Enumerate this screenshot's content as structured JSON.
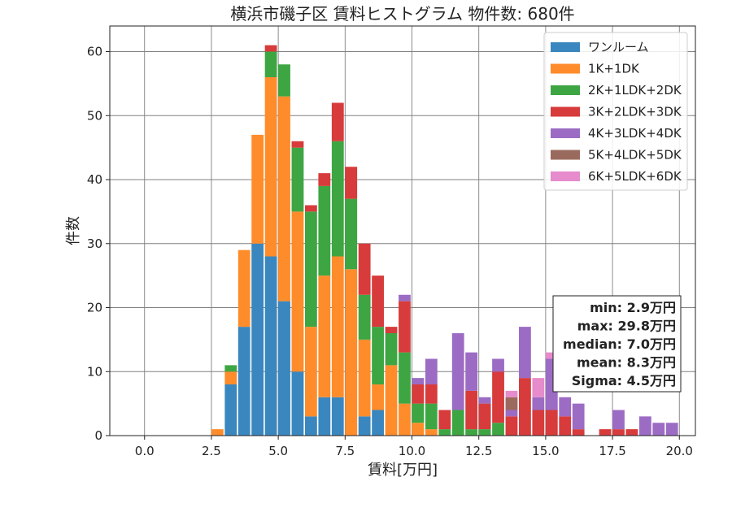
{
  "chart_data": {
    "type": "bar",
    "stacked": true,
    "title": "横浜市磯子区 賃料ヒストグラム 物件数: 680件",
    "xlabel": "賃料[万円]",
    "ylabel": "件数",
    "xlim": [
      -1.3,
      20.6
    ],
    "ylim": [
      0,
      64
    ],
    "xticks": [
      0.0,
      2.5,
      5.0,
      7.5,
      10.0,
      12.5,
      15.0,
      17.5,
      20.0
    ],
    "xtick_labels": [
      "0.0",
      "2.5",
      "5.0",
      "7.5",
      "10.0",
      "12.5",
      "15.0",
      "17.5",
      "20.0"
    ],
    "yticks": [
      0,
      10,
      20,
      30,
      40,
      50,
      60
    ],
    "ytick_labels": [
      "0",
      "10",
      "20",
      "30",
      "40",
      "50",
      "60"
    ],
    "grid": true,
    "legend_position": "top-right",
    "bin_width": 0.5,
    "x": [
      2.5,
      3.0,
      3.5,
      4.0,
      4.5,
      5.0,
      5.5,
      6.0,
      6.5,
      7.0,
      7.5,
      8.0,
      8.5,
      9.0,
      9.5,
      10.0,
      10.5,
      11.0,
      11.5,
      12.0,
      12.5,
      13.0,
      13.5,
      14.0,
      14.5,
      15.0,
      15.5,
      16.0,
      16.5,
      17.0,
      17.5,
      18.0,
      18.5,
      19.0,
      19.5
    ],
    "series": [
      {
        "name": "ワンルーム",
        "color": "#3a87bf",
        "values": [
          0,
          8,
          17,
          30,
          28,
          21,
          10,
          3,
          6,
          6,
          0,
          3,
          4,
          0,
          0,
          0,
          0,
          0,
          0,
          0,
          0,
          0,
          0,
          0,
          0,
          0,
          0,
          0,
          0,
          0,
          0,
          0,
          0,
          0,
          0
        ]
      },
      {
        "name": "1K+1DK",
        "color": "#ff8c2b",
        "values": [
          1,
          2,
          12,
          17,
          28,
          32,
          25,
          14,
          19,
          22,
          26,
          12,
          4,
          11,
          5,
          2,
          1,
          0,
          0,
          0,
          0,
          0,
          0,
          0,
          0,
          0,
          0,
          0,
          0,
          0,
          0,
          0,
          0,
          0,
          0
        ]
      },
      {
        "name": "2K+1LDK+2DK",
        "color": "#3da643",
        "values": [
          0,
          1,
          0,
          0,
          4,
          5,
          10,
          18,
          14,
          18,
          11,
          7,
          9,
          5,
          8,
          3,
          4,
          1,
          4,
          1,
          1,
          2,
          0,
          0,
          0,
          0,
          0,
          0,
          0,
          0,
          0,
          0,
          0,
          0,
          0
        ]
      },
      {
        "name": "3K+2LDK+3DK",
        "color": "#d73b3b",
        "values": [
          0,
          0,
          0,
          0,
          1,
          0,
          1,
          1,
          2,
          6,
          5,
          8,
          8,
          1,
          8,
          3,
          3,
          3,
          0,
          6,
          4,
          8,
          3,
          9,
          4,
          4,
          3,
          1,
          0,
          1,
          1,
          1,
          0,
          0,
          0
        ]
      },
      {
        "name": "4K+3LDK+4DK",
        "color": "#9c6cc4",
        "values": [
          0,
          0,
          0,
          0,
          0,
          0,
          0,
          0,
          0,
          0,
          0,
          0,
          0,
          0,
          1,
          1,
          4,
          0,
          12,
          6,
          1,
          2,
          1,
          8,
          2,
          8,
          3,
          4,
          0,
          0,
          3,
          0,
          3,
          2,
          2
        ]
      },
      {
        "name": "5K+4LDK+5DK",
        "color": "#9b6a5e",
        "values": [
          0,
          0,
          0,
          0,
          0,
          0,
          0,
          0,
          0,
          0,
          0,
          0,
          0,
          0,
          0,
          0,
          0,
          0,
          0,
          0,
          0,
          0,
          2,
          0,
          0,
          0,
          0,
          0,
          0,
          0,
          0,
          0,
          0,
          0,
          0
        ]
      },
      {
        "name": "6K+5LDK+6DK",
        "color": "#e68bcc",
        "values": [
          0,
          0,
          0,
          0,
          0,
          0,
          0,
          0,
          0,
          0,
          0,
          0,
          0,
          0,
          0,
          0,
          0,
          0,
          0,
          0,
          0,
          0,
          1,
          0,
          3,
          1,
          0,
          0,
          0,
          0,
          0,
          0,
          0,
          0,
          0
        ]
      }
    ],
    "stats_box": {
      "lines": [
        "min: 2.9万円",
        "max: 29.8万円",
        "median: 7.0万円",
        "mean: 8.3万円",
        "Sigma: 4.5万円"
      ]
    }
  }
}
